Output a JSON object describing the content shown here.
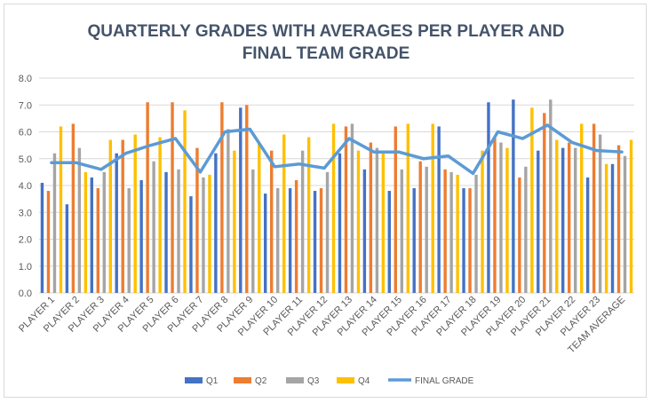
{
  "chart_data": {
    "type": "bar",
    "title": "QUARTERLY GRADES WITH AVERAGES PER PLAYER AND FINAL TEAM GRADE",
    "title_lines": [
      "QUARTERLY GRADES WITH AVERAGES PER PLAYER AND",
      "FINAL TEAM GRADE"
    ],
    "xlabel": "",
    "ylabel": "",
    "ylim": [
      0,
      8
    ],
    "yticks": [
      "0.0",
      "1.0",
      "2.0",
      "3.0",
      "4.0",
      "5.0",
      "6.0",
      "7.0",
      "8.0"
    ],
    "grid": true,
    "legend_position": "bottom",
    "categories": [
      "PLAYER 1",
      "PLAYER 2",
      "PLAYER 3",
      "PLAYER 4",
      "PLAYER 5",
      "PLAYER 6",
      "PLAYER 7",
      "PLAYER 8",
      "PLAYER 9",
      "PLAYER 10",
      "PLAYER 11",
      "PLAYER 12",
      "PLAYER 13",
      "PLAYER 14",
      "PLAYER 15",
      "PLAYER 16",
      "PLAYER 17",
      "PLAYER 18",
      "PLAYER 19",
      "PLAYER 20",
      "PLAYER 21",
      "PLAYER 22",
      "PLAYER 23",
      "TEAM AVERAGE"
    ],
    "series": [
      {
        "name": "Q1",
        "kind": "bar",
        "color": "#4472c4",
        "values": [
          4.1,
          3.3,
          4.3,
          5.2,
          4.2,
          4.5,
          3.6,
          5.2,
          6.9,
          3.7,
          3.9,
          3.8,
          5.2,
          4.6,
          3.8,
          3.9,
          6.2,
          3.9,
          7.1,
          7.2,
          5.3,
          5.4,
          4.3,
          4.8
        ]
      },
      {
        "name": "Q2",
        "kind": "bar",
        "color": "#ed7d31",
        "values": [
          3.8,
          6.3,
          3.9,
          5.7,
          7.1,
          7.1,
          5.4,
          7.1,
          7.0,
          5.3,
          4.2,
          3.9,
          6.2,
          5.6,
          6.2,
          4.9,
          4.6,
          3.9,
          5.8,
          4.3,
          6.7,
          5.6,
          6.3,
          5.5
        ]
      },
      {
        "name": "Q3",
        "kind": "bar",
        "color": "#a5a5a5",
        "values": [
          5.2,
          5.4,
          4.5,
          3.9,
          4.9,
          4.6,
          4.3,
          6.1,
          4.6,
          3.9,
          5.3,
          4.5,
          6.3,
          5.4,
          4.6,
          4.7,
          4.5,
          4.4,
          5.6,
          4.7,
          7.2,
          5.4,
          5.9,
          5.1
        ]
      },
      {
        "name": "Q4",
        "kind": "bar",
        "color": "#ffc000",
        "values": [
          6.2,
          4.5,
          5.7,
          5.9,
          5.8,
          6.8,
          4.4,
          5.3,
          5.6,
          5.9,
          5.8,
          6.3,
          5.3,
          5.2,
          6.3,
          6.3,
          4.4,
          5.3,
          5.4,
          6.9,
          5.7,
          6.3,
          4.8,
          5.7
        ]
      },
      {
        "name": "FINAL GRADE",
        "kind": "line",
        "color": "#5b9bd5",
        "values": [
          4.85,
          4.85,
          4.6,
          5.2,
          5.5,
          5.75,
          4.5,
          6.0,
          6.1,
          4.7,
          4.8,
          4.65,
          5.75,
          5.25,
          5.25,
          5.0,
          5.1,
          4.45,
          6.0,
          5.75,
          6.25,
          5.6,
          5.3,
          5.25
        ]
      }
    ]
  }
}
